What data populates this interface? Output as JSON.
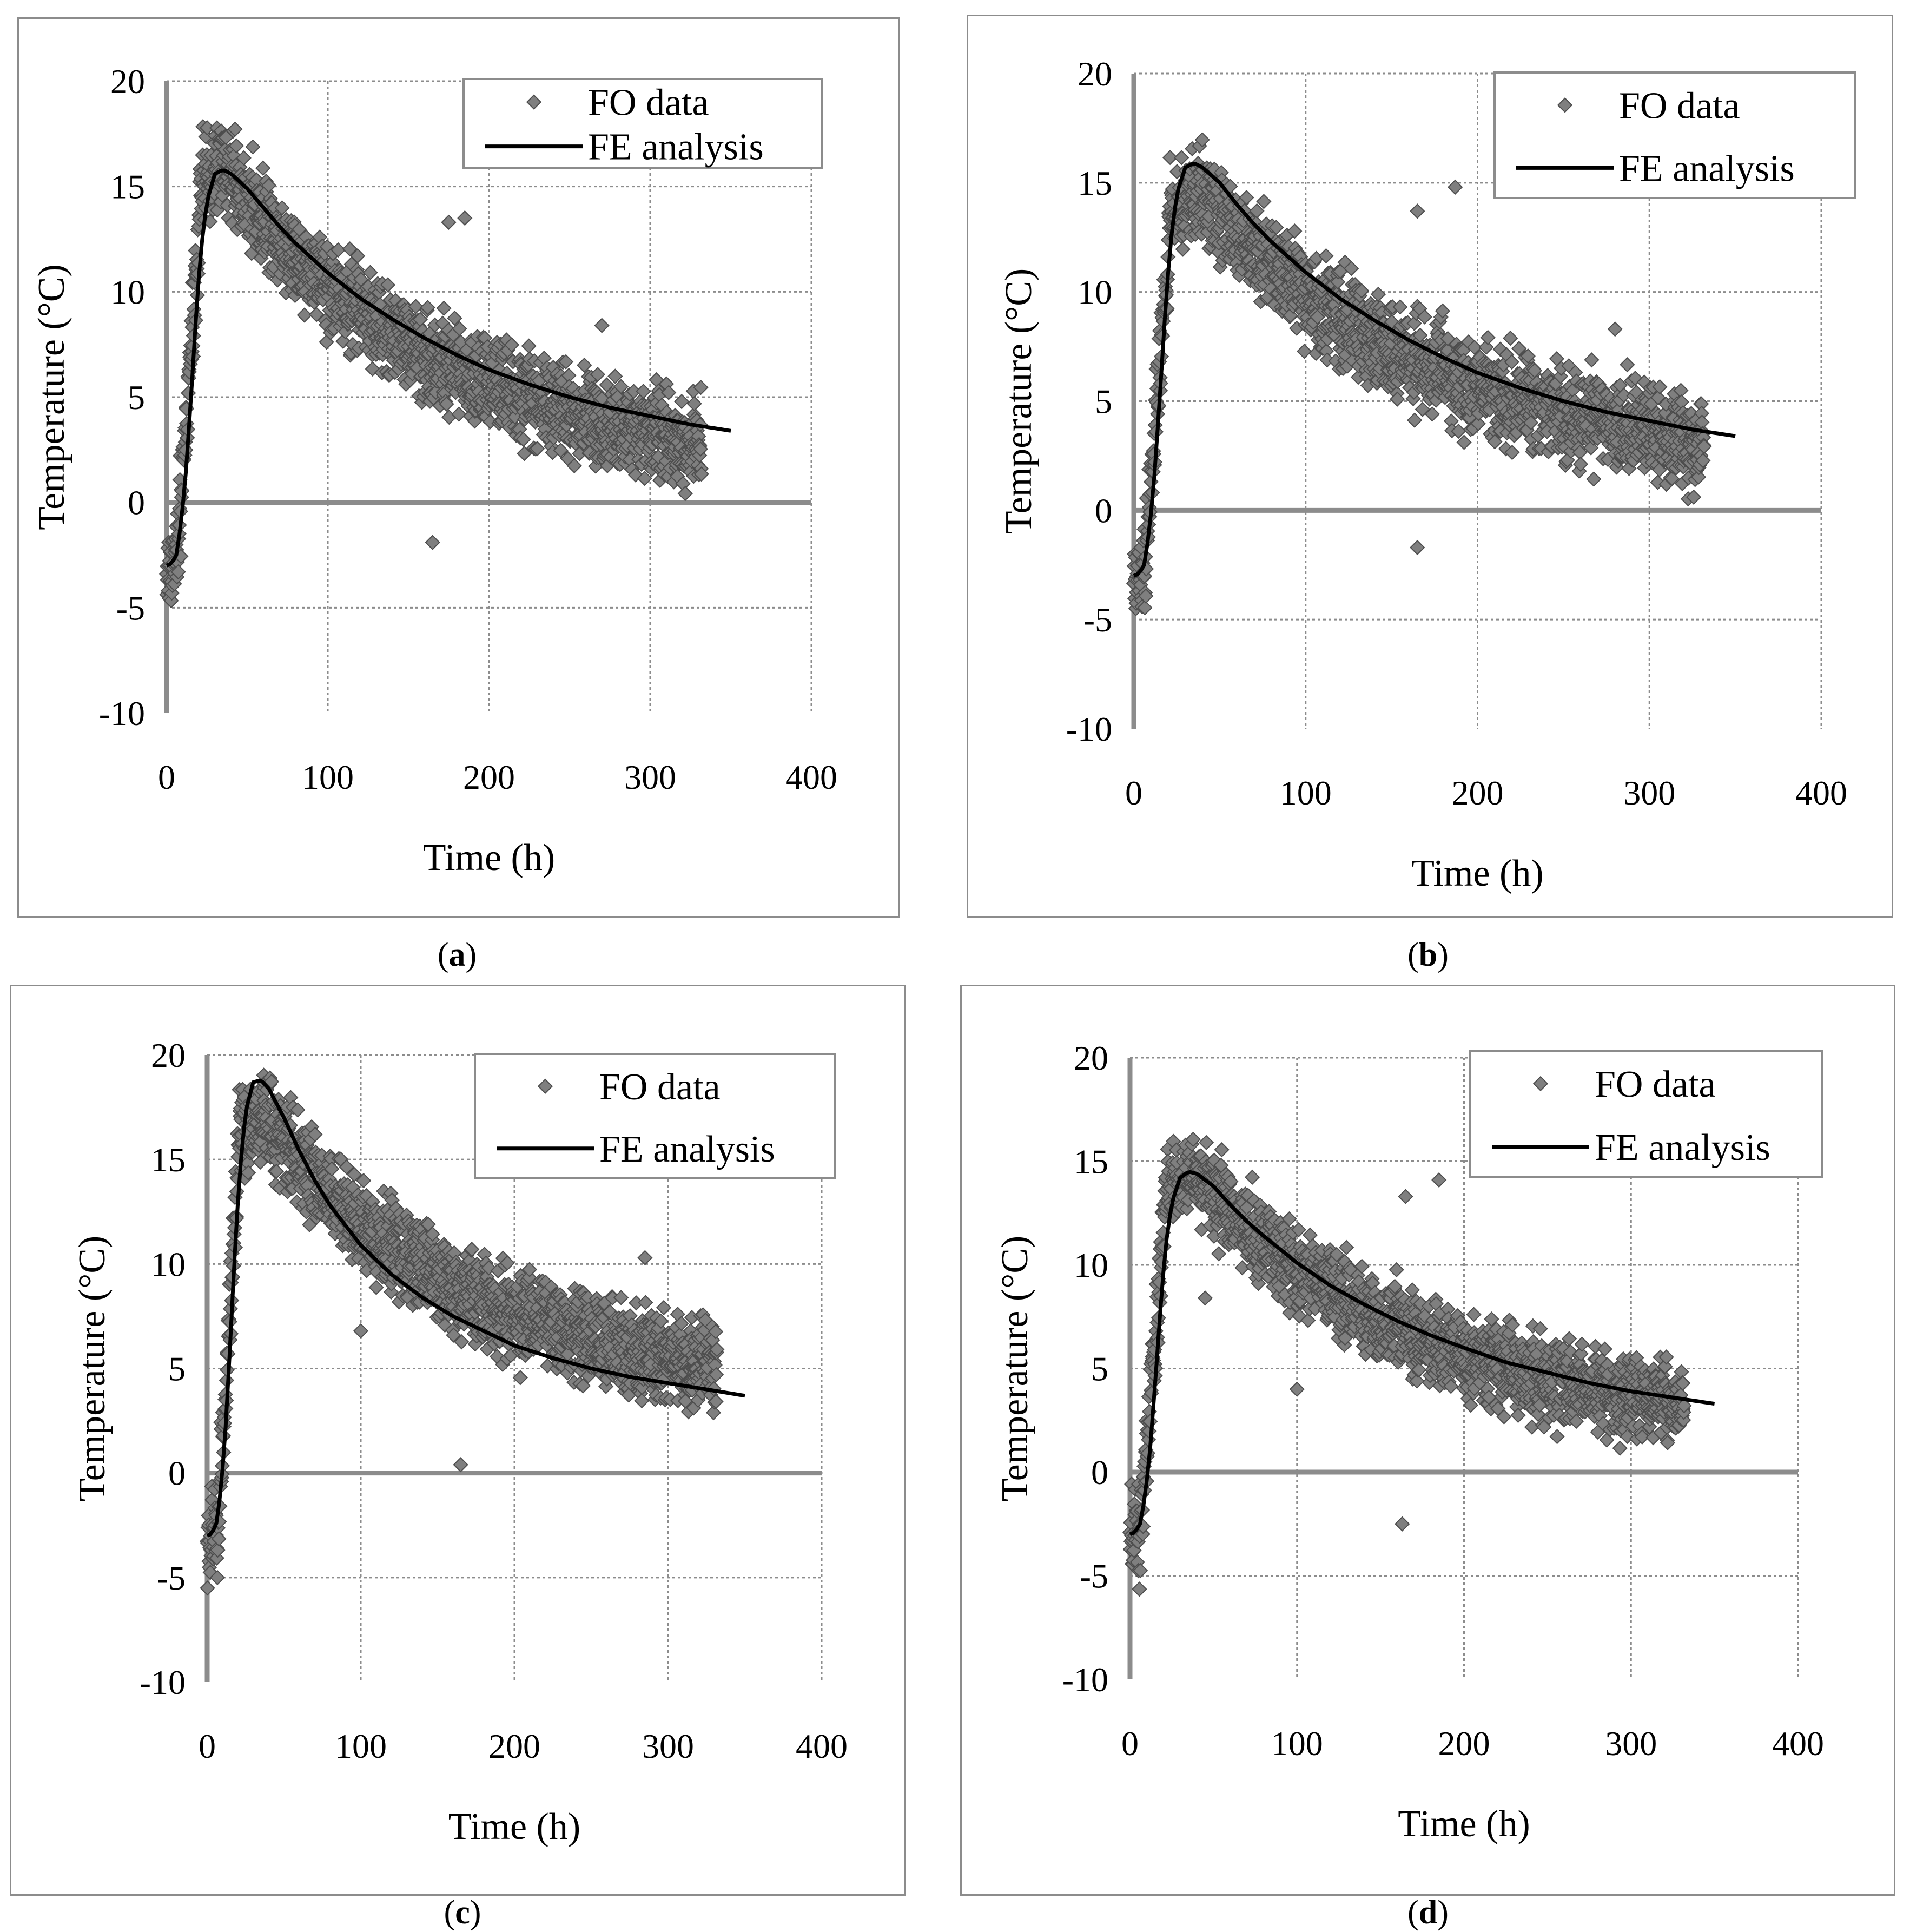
{
  "figure": {
    "colors": {
      "scatter": "#7f7f7f",
      "scatter_edge": "#4d4d4d",
      "line": "#000000",
      "grid": "#8c8c8c",
      "axis": "#8c8c8c"
    }
  },
  "chart_data": [
    {
      "type": "scatter+line",
      "panel": "a",
      "caption_label": "a",
      "xlabel": "Time (h)",
      "ylabel": "Temperature (°C)",
      "xlim": [
        0,
        400
      ],
      "ylim": [
        -10,
        20
      ],
      "xticks": [
        "0",
        "100",
        "200",
        "300",
        "400"
      ],
      "yticks": [
        "-10",
        "-5",
        "0",
        "5",
        "10",
        "15",
        "20"
      ],
      "grid": true,
      "legend": {
        "position": "top-right",
        "entries": [
          "FO data",
          "FE analysis"
        ]
      },
      "series": [
        {
          "name": "FO data",
          "kind": "scatter",
          "t_end": 332,
          "peak": 16.0,
          "t_peak": 35,
          "base": -3.5,
          "late_end": 2.8,
          "noise": 1.6,
          "outliers": [
            [
              165,
              -1.9
            ],
            [
              185,
              13.5
            ],
            [
              175,
              13.3
            ],
            [
              270,
              8.4
            ]
          ]
        },
        {
          "name": "FE analysis",
          "kind": "line",
          "x": [
            0,
            3,
            6,
            9,
            12,
            15,
            18,
            21,
            25,
            30,
            35,
            40,
            50,
            60,
            70,
            80,
            100,
            120,
            140,
            160,
            180,
            200,
            225,
            250,
            275,
            300,
            325,
            350
          ],
          "y": [
            -3.0,
            -2.9,
            -2.5,
            -1.0,
            1.5,
            4.8,
            8.5,
            11.8,
            14.3,
            15.6,
            15.8,
            15.6,
            14.9,
            14.0,
            13.1,
            12.3,
            10.9,
            9.7,
            8.7,
            7.8,
            7.0,
            6.3,
            5.6,
            5.0,
            4.5,
            4.1,
            3.7,
            3.4
          ]
        }
      ]
    },
    {
      "type": "scatter+line",
      "panel": "b",
      "caption_label": "b",
      "xlabel": "Time (h)",
      "ylabel": "Temperature (°C)",
      "xlim": [
        0,
        400
      ],
      "ylim": [
        -10,
        20
      ],
      "xticks": [
        "0",
        "100",
        "200",
        "300",
        "400"
      ],
      "yticks": [
        "-10",
        "-5",
        "0",
        "5",
        "10",
        "15",
        "20"
      ],
      "grid": true,
      "legend": {
        "position": "top-right",
        "entries": [
          "FO data",
          "FE analysis"
        ]
      },
      "series": [
        {
          "name": "FO data",
          "kind": "scatter",
          "t_end": 332,
          "peak": 14.5,
          "t_peak": 40,
          "base": -3.5,
          "late_end": 3.2,
          "noise": 1.6,
          "outliers": [
            [
              165,
              -1.7
            ],
            [
              187,
              14.8
            ],
            [
              165,
              13.7
            ],
            [
              280,
              8.3
            ]
          ]
        },
        {
          "name": "FE analysis",
          "kind": "line",
          "x": [
            0,
            3,
            6,
            9,
            12,
            15,
            18,
            21,
            25,
            30,
            35,
            40,
            50,
            60,
            70,
            80,
            100,
            120,
            140,
            160,
            180,
            200,
            225,
            250,
            275,
            300,
            325,
            350
          ],
          "y": [
            -3.0,
            -2.9,
            -2.5,
            -1.0,
            1.6,
            5.0,
            8.7,
            12.0,
            14.5,
            15.7,
            15.9,
            15.7,
            15.0,
            14.0,
            13.1,
            12.3,
            10.9,
            9.7,
            8.7,
            7.8,
            7.0,
            6.3,
            5.6,
            5.0,
            4.5,
            4.1,
            3.7,
            3.4
          ]
        }
      ]
    },
    {
      "type": "scatter+line",
      "panel": "c",
      "caption_label": "c",
      "xlabel": "Time (h)",
      "ylabel": "Temperature (°C)",
      "xlim": [
        0,
        400
      ],
      "ylim": [
        -10,
        20
      ],
      "xticks": [
        "0",
        "100",
        "200",
        "300",
        "400"
      ],
      "yticks": [
        "-10",
        "-5",
        "0",
        "5",
        "10",
        "15",
        "20"
      ],
      "grid": true,
      "legend": {
        "position": "top-right",
        "entries": [
          "FO data",
          "FE analysis"
        ]
      },
      "series": [
        {
          "name": "FO data",
          "kind": "scatter",
          "t_end": 332,
          "peak": 17.0,
          "t_peak": 38,
          "base": -3.8,
          "late_end": 5.0,
          "noise": 1.6,
          "outliers": [
            [
              165,
              0.4
            ],
            [
              100,
              6.8
            ],
            [
              285,
              10.3
            ]
          ]
        },
        {
          "name": "FE analysis",
          "kind": "line",
          "x": [
            0,
            3,
            6,
            9,
            12,
            15,
            18,
            21,
            25,
            30,
            35,
            40,
            50,
            60,
            70,
            80,
            100,
            120,
            140,
            160,
            180,
            200,
            225,
            250,
            275,
            300,
            325,
            350
          ],
          "y": [
            -3.0,
            -2.9,
            -2.4,
            -0.8,
            2.2,
            6.2,
            10.5,
            14.2,
            17.3,
            18.7,
            18.8,
            18.4,
            17.0,
            15.4,
            14.0,
            12.8,
            10.9,
            9.5,
            8.4,
            7.5,
            6.8,
            6.1,
            5.5,
            5.0,
            4.6,
            4.3,
            4.0,
            3.7
          ]
        }
      ]
    },
    {
      "type": "scatter+line",
      "panel": "d",
      "caption_label": "d",
      "xlabel": "Time (h)",
      "ylabel": "Temperature (°C)",
      "xlim": [
        0,
        400
      ],
      "ylim": [
        -10,
        20
      ],
      "xticks": [
        "0",
        "100",
        "200",
        "300",
        "400"
      ],
      "yticks": [
        "-10",
        "-5",
        "0",
        "5",
        "10",
        "15",
        "20"
      ],
      "grid": true,
      "legend": {
        "position": "top-right",
        "entries": [
          "FO data",
          "FE analysis"
        ]
      },
      "series": [
        {
          "name": "FO data",
          "kind": "scatter",
          "t_end": 332,
          "peak": 14.5,
          "t_peak": 38,
          "base": -3.8,
          "late_end": 3.2,
          "noise": 1.5,
          "outliers": [
            [
              163,
              -2.5
            ],
            [
              165,
              13.3
            ],
            [
              185,
              14.1
            ],
            [
              45,
              8.4
            ],
            [
              100,
              4.0
            ]
          ]
        },
        {
          "name": "FE analysis",
          "kind": "line",
          "x": [
            0,
            3,
            6,
            9,
            12,
            15,
            18,
            21,
            25,
            30,
            35,
            40,
            50,
            60,
            70,
            80,
            100,
            120,
            140,
            160,
            180,
            200,
            225,
            250,
            275,
            300,
            325,
            350
          ],
          "y": [
            -3.0,
            -2.9,
            -2.5,
            -1.2,
            1.1,
            4.2,
            7.6,
            10.7,
            13.0,
            14.2,
            14.5,
            14.4,
            13.8,
            12.9,
            12.1,
            11.4,
            10.1,
            9.0,
            8.1,
            7.3,
            6.6,
            6.0,
            5.3,
            4.8,
            4.3,
            3.9,
            3.6,
            3.3
          ]
        }
      ]
    }
  ]
}
